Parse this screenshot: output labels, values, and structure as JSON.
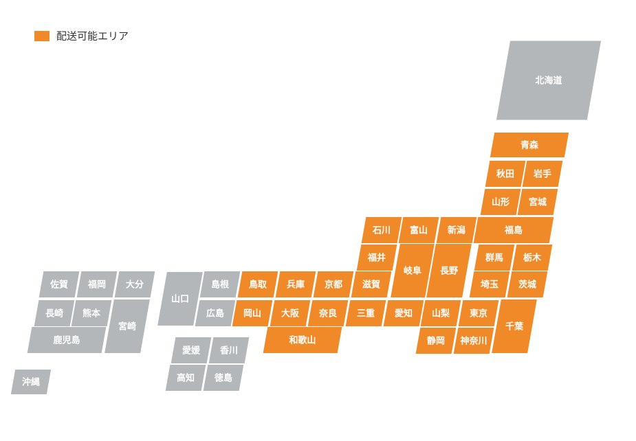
{
  "legend": {
    "label": "配送可能エリア",
    "color": "#f08a28"
  },
  "prefectures": [
    {
      "name": "北海道",
      "delivery": false
    },
    {
      "name": "青森",
      "delivery": true
    },
    {
      "name": "秋田",
      "delivery": true
    },
    {
      "name": "岩手",
      "delivery": true
    },
    {
      "name": "山形",
      "delivery": true
    },
    {
      "name": "宮城",
      "delivery": true
    },
    {
      "name": "福島",
      "delivery": true
    },
    {
      "name": "石川",
      "delivery": true
    },
    {
      "name": "富山",
      "delivery": true
    },
    {
      "name": "新潟",
      "delivery": true
    },
    {
      "name": "福井",
      "delivery": true
    },
    {
      "name": "岐阜",
      "delivery": true
    },
    {
      "name": "長野",
      "delivery": true
    },
    {
      "name": "群馬",
      "delivery": true
    },
    {
      "name": "栃木",
      "delivery": true
    },
    {
      "name": "埼玉",
      "delivery": true
    },
    {
      "name": "茨城",
      "delivery": true
    },
    {
      "name": "鳥取",
      "delivery": true
    },
    {
      "name": "兵庫",
      "delivery": true
    },
    {
      "name": "京都",
      "delivery": true
    },
    {
      "name": "滋賀",
      "delivery": true
    },
    {
      "name": "岡山",
      "delivery": true
    },
    {
      "name": "大阪",
      "delivery": true
    },
    {
      "name": "奈良",
      "delivery": true
    },
    {
      "name": "三重",
      "delivery": true
    },
    {
      "name": "愛知",
      "delivery": true
    },
    {
      "name": "山梨",
      "delivery": true
    },
    {
      "name": "東京",
      "delivery": true
    },
    {
      "name": "千葉",
      "delivery": true
    },
    {
      "name": "和歌山",
      "delivery": true
    },
    {
      "name": "静岡",
      "delivery": true
    },
    {
      "name": "神奈川",
      "delivery": true
    },
    {
      "name": "佐賀",
      "delivery": false
    },
    {
      "name": "福岡",
      "delivery": false
    },
    {
      "name": "大分",
      "delivery": false
    },
    {
      "name": "長崎",
      "delivery": false
    },
    {
      "name": "熊本",
      "delivery": false
    },
    {
      "name": "宮崎",
      "delivery": false
    },
    {
      "name": "鹿児島",
      "delivery": false
    },
    {
      "name": "沖縄",
      "delivery": false
    },
    {
      "name": "山口",
      "delivery": false
    },
    {
      "name": "島根",
      "delivery": false
    },
    {
      "name": "広島",
      "delivery": false
    },
    {
      "name": "愛媛",
      "delivery": false
    },
    {
      "name": "香川",
      "delivery": false
    },
    {
      "name": "高知",
      "delivery": false
    },
    {
      "name": "徳島",
      "delivery": false
    }
  ]
}
